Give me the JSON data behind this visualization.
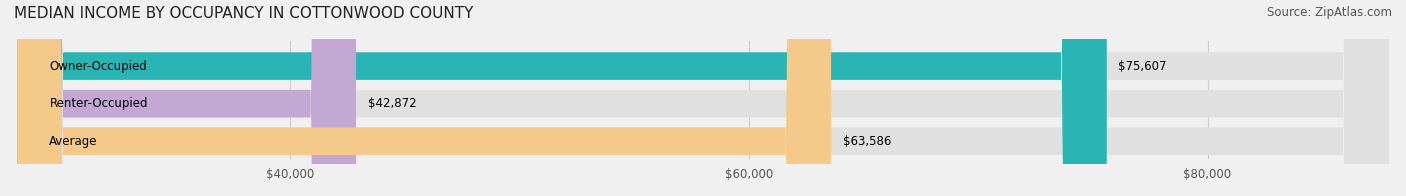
{
  "title": "MEDIAN INCOME BY OCCUPANCY IN COTTONWOOD COUNTY",
  "source": "Source: ZipAtlas.com",
  "categories": [
    "Owner-Occupied",
    "Renter-Occupied",
    "Average"
  ],
  "values": [
    75607,
    42872,
    63586
  ],
  "bar_colors": [
    "#2ab5b5",
    "#c4a8d4",
    "#f5c98a"
  ],
  "bar_edge_colors": [
    "#2ab5b5",
    "#c4a8d4",
    "#f5c98a"
  ],
  "value_labels": [
    "$75,607",
    "$42,872",
    "$63,586"
  ],
  "xticks": [
    40000,
    60000,
    80000
  ],
  "xtick_labels": [
    "$40,000",
    "$60,000",
    "$80,000"
  ],
  "xlim_left": 28000,
  "xlim_right": 88000,
  "background_color": "#f0f0f0",
  "bar_background_color": "#e8e8e8",
  "title_fontsize": 11,
  "source_fontsize": 8.5,
  "label_fontsize": 8.5,
  "value_fontsize": 8.5,
  "tick_fontsize": 8.5
}
